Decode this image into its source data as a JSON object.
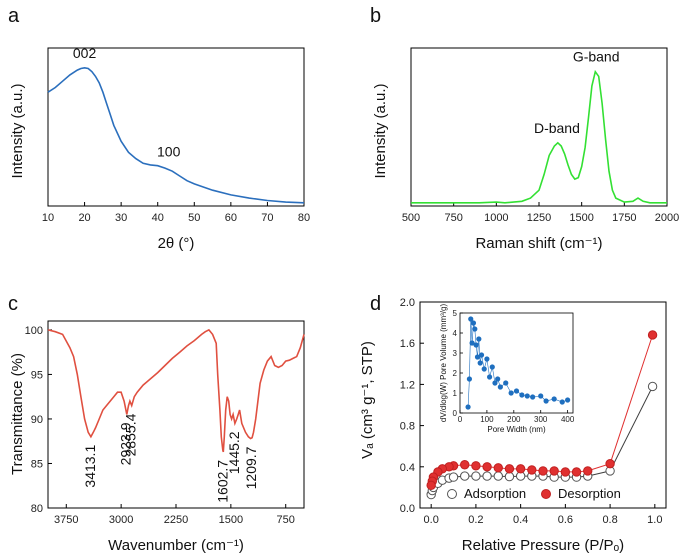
{
  "chart_data": [
    {
      "id": "a",
      "panel_label": "a",
      "type": "line",
      "xlabel": "2θ (°)",
      "ylabel": "Intensity (a.u.)",
      "xlim": [
        10,
        80
      ],
      "ylim": [
        0,
        1
      ],
      "xticks": [
        10,
        20,
        30,
        40,
        50,
        60,
        70,
        80
      ],
      "color": "#2b6fbd",
      "series": [
        {
          "x": [
            10,
            12,
            14,
            16,
            18,
            19,
            20,
            21,
            22,
            23,
            24,
            25,
            26,
            27,
            28,
            30,
            32,
            34,
            36,
            38,
            40,
            42,
            44,
            46,
            48,
            50,
            55,
            60,
            65,
            70,
            75,
            80
          ],
          "y": [
            0.72,
            0.75,
            0.79,
            0.83,
            0.86,
            0.87,
            0.875,
            0.87,
            0.85,
            0.82,
            0.78,
            0.72,
            0.65,
            0.58,
            0.51,
            0.41,
            0.34,
            0.3,
            0.27,
            0.26,
            0.255,
            0.24,
            0.22,
            0.19,
            0.16,
            0.14,
            0.1,
            0.07,
            0.05,
            0.035,
            0.025,
            0.02
          ]
        }
      ],
      "annotations": [
        {
          "text": "002",
          "x": 20,
          "y": 0.875
        },
        {
          "text": "100",
          "x": 43,
          "y": 0.25
        }
      ]
    },
    {
      "id": "b",
      "panel_label": "b",
      "type": "line",
      "xlabel": "Raman shift (cm⁻¹)",
      "ylabel": "Intensity (a.u.)",
      "xlim": [
        500,
        2000
      ],
      "ylim": [
        0,
        1
      ],
      "xticks": [
        500,
        750,
        1000,
        1250,
        1500,
        1750,
        2000
      ],
      "color": "#33e033",
      "series": [
        {
          "x": [
            500,
            600,
            700,
            800,
            900,
            1000,
            1050,
            1100,
            1150,
            1200,
            1250,
            1280,
            1310,
            1340,
            1360,
            1380,
            1400,
            1420,
            1440,
            1460,
            1480,
            1500,
            1520,
            1540,
            1560,
            1580,
            1600,
            1620,
            1640,
            1660,
            1680,
            1700,
            1750,
            1800,
            1830,
            1860,
            1900,
            1950,
            2000
          ],
          "y": [
            0.02,
            0.02,
            0.02,
            0.02,
            0.02,
            0.025,
            0.02,
            0.025,
            0.03,
            0.05,
            0.1,
            0.2,
            0.32,
            0.38,
            0.4,
            0.38,
            0.33,
            0.26,
            0.2,
            0.17,
            0.18,
            0.25,
            0.37,
            0.56,
            0.76,
            0.85,
            0.82,
            0.65,
            0.42,
            0.22,
            0.1,
            0.05,
            0.025,
            0.03,
            0.05,
            0.03,
            0.02,
            0.02,
            0.02
          ]
        }
      ],
      "annotations": [
        {
          "text": "D-band",
          "x": 1355,
          "y": 0.4
        },
        {
          "text": "G-band",
          "x": 1585,
          "y": 0.85
        }
      ]
    },
    {
      "id": "c",
      "panel_label": "c",
      "type": "line",
      "xlabel": "Wavenumber (cm⁻¹)",
      "ylabel": "Transmittance (%)",
      "xlim": [
        4000,
        500
      ],
      "ylim": [
        80,
        101
      ],
      "xticks": [
        3750,
        3000,
        2250,
        1500,
        750
      ],
      "yticks": [
        80,
        85,
        90,
        95,
        100
      ],
      "color": "#e05040",
      "series": [
        {
          "x": [
            4000,
            3900,
            3800,
            3700,
            3650,
            3600,
            3550,
            3500,
            3450,
            3413,
            3380,
            3350,
            3300,
            3250,
            3200,
            3150,
            3100,
            3050,
            3000,
            2960,
            2923,
            2900,
            2880,
            2855,
            2820,
            2780,
            2700,
            2600,
            2500,
            2400,
            2300,
            2200,
            2100,
            2000,
            1900,
            1850,
            1800,
            1750,
            1700,
            1680,
            1650,
            1630,
            1610,
            1603,
            1590,
            1570,
            1550,
            1530,
            1510,
            1490,
            1470,
            1445,
            1420,
            1400,
            1380,
            1350,
            1300,
            1260,
            1230,
            1210,
            1190,
            1160,
            1130,
            1100,
            1050,
            1000,
            950,
            900,
            850,
            800,
            750,
            700,
            650,
            600,
            550,
            500
          ],
          "y": [
            100,
            99.8,
            99.5,
            98.0,
            97.0,
            95.0,
            92.5,
            90.0,
            88.5,
            88.0,
            88.5,
            89.0,
            90.0,
            91.0,
            91.5,
            92.0,
            92.5,
            93.0,
            93.0,
            92.0,
            90.5,
            91.5,
            92.0,
            91.5,
            92.5,
            93.0,
            93.8,
            94.5,
            95.2,
            96.0,
            96.8,
            97.5,
            98.2,
            98.8,
            99.5,
            99.8,
            100.0,
            99.5,
            98.5,
            95.0,
            91.0,
            88.0,
            86.5,
            86.3,
            88.0,
            91.0,
            92.5,
            92.0,
            90.5,
            90.0,
            90.5,
            89.5,
            90.0,
            90.5,
            91.0,
            89.5,
            88.5,
            88.0,
            87.8,
            87.9,
            88.5,
            90.0,
            92.0,
            94.0,
            95.5,
            96.5,
            97.0,
            96.0,
            95.8,
            96.0,
            96.5,
            96.6,
            96.8,
            97.0,
            98.0,
            99.5
          ]
        }
      ],
      "annotations": [
        {
          "text": "3413.1",
          "x": 3413.1,
          "y": 88.0
        },
        {
          "text": "2923.9",
          "x": 2923.9,
          "y": 90.5
        },
        {
          "text": "2855.4",
          "x": 2855.4,
          "y": 91.5
        },
        {
          "text": "1602.7",
          "x": 1602.7,
          "y": 86.3
        },
        {
          "text": "1445.2",
          "x": 1445.2,
          "y": 89.5
        },
        {
          "text": "1209.7",
          "x": 1209.7,
          "y": 87.8
        }
      ]
    },
    {
      "id": "d",
      "panel_label": "d",
      "type": "line",
      "xlabel": "Relative Pressure (P/Pₒ)",
      "ylabel": "Vₐ (cm³ g⁻¹, STP)",
      "xlim": [
        -0.05,
        1.05
      ],
      "ylim": [
        0,
        2.0
      ],
      "xticks": [
        0.0,
        0.2,
        0.4,
        0.6,
        0.8,
        1.0
      ],
      "yticks": [
        0.0,
        0.4,
        0.8,
        1.2,
        1.6,
        2.0
      ],
      "legend_position": "bottom",
      "series": [
        {
          "name": "Adsorption",
          "color": "#404040",
          "marker": "open-circle",
          "x": [
            0.0,
            0.005,
            0.01,
            0.03,
            0.05,
            0.08,
            0.1,
            0.15,
            0.2,
            0.25,
            0.3,
            0.35,
            0.4,
            0.45,
            0.5,
            0.55,
            0.6,
            0.65,
            0.7,
            0.8,
            0.99
          ],
          "y": [
            0.13,
            0.17,
            0.2,
            0.24,
            0.27,
            0.29,
            0.3,
            0.31,
            0.31,
            0.31,
            0.31,
            0.305,
            0.31,
            0.31,
            0.31,
            0.3,
            0.3,
            0.3,
            0.31,
            0.36,
            1.18
          ]
        },
        {
          "name": "Desorption",
          "color": "#e03030",
          "marker": "filled-circle",
          "x": [
            0.99,
            0.8,
            0.7,
            0.65,
            0.6,
            0.55,
            0.5,
            0.45,
            0.4,
            0.35,
            0.3,
            0.25,
            0.2,
            0.15,
            0.1,
            0.08,
            0.05,
            0.03,
            0.01,
            0.005,
            0.0
          ],
          "y": [
            1.68,
            0.43,
            0.36,
            0.35,
            0.35,
            0.36,
            0.36,
            0.37,
            0.38,
            0.38,
            0.39,
            0.4,
            0.41,
            0.42,
            0.41,
            0.4,
            0.38,
            0.35,
            0.3,
            0.26,
            0.22
          ]
        }
      ],
      "inset": {
        "type": "scatter",
        "xlabel": "Pore Width (nm)",
        "ylabel": "dV/dlog(W) Pore Volume (mm³/g)",
        "xlim": [
          0,
          420
        ],
        "ylim": [
          0,
          5
        ],
        "xticks": [
          0,
          100,
          200,
          300,
          400
        ],
        "yticks": [
          0,
          1,
          2,
          3,
          4,
          5
        ],
        "color": "#1f6fbf",
        "x": [
          30,
          35,
          40,
          45,
          50,
          55,
          60,
          65,
          70,
          75,
          80,
          90,
          100,
          110,
          120,
          130,
          140,
          150,
          170,
          190,
          210,
          230,
          250,
          270,
          300,
          320,
          350,
          380,
          400
        ],
        "y": [
          0.3,
          1.7,
          4.7,
          3.5,
          4.5,
          4.2,
          3.4,
          2.8,
          3.7,
          2.5,
          2.9,
          2.2,
          2.7,
          1.8,
          2.3,
          1.5,
          1.7,
          1.3,
          1.5,
          1.0,
          1.1,
          0.9,
          0.85,
          0.8,
          0.85,
          0.6,
          0.7,
          0.55,
          0.65
        ]
      }
    }
  ]
}
